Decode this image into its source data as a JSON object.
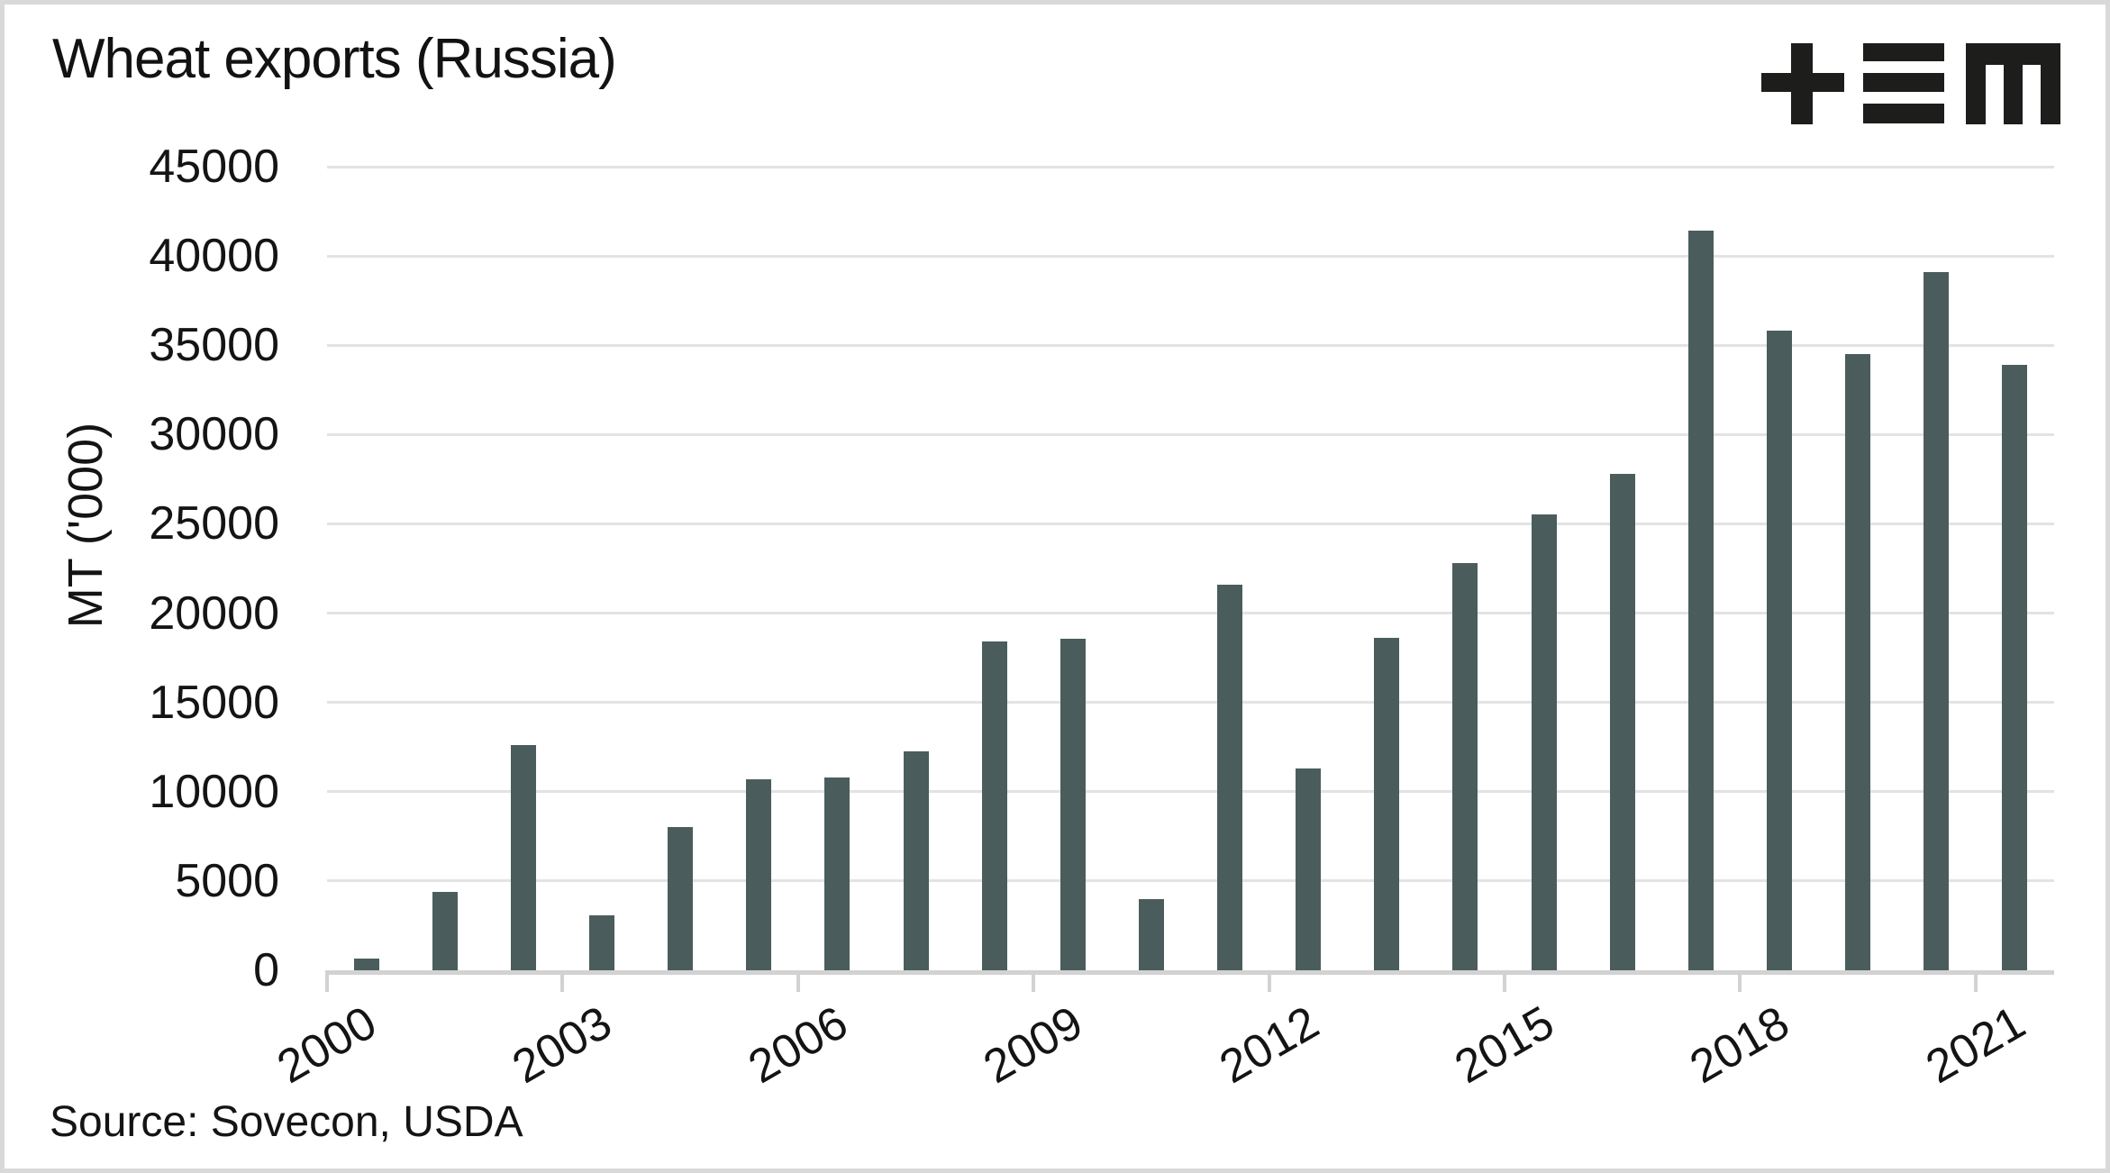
{
  "title": "Wheat exports (Russia)",
  "source_note": "Source: Sovecon, USDA",
  "logo": {
    "name": "tem-logo",
    "color": "#1d1d1b"
  },
  "colors": {
    "bar": "#4a5d5c",
    "gridline": "#e3e3e3",
    "axis": "#d2d2d2",
    "text": "#141414",
    "frame_border": "#d9d9d9",
    "background": "#ffffff"
  },
  "chart_data": {
    "type": "bar",
    "title": "Wheat exports (Russia)",
    "xlabel": "",
    "ylabel": "MT ('000)",
    "categories": [
      2000,
      2001,
      2002,
      2003,
      2004,
      2005,
      2006,
      2007,
      2008,
      2009,
      2010,
      2011,
      2012,
      2013,
      2014,
      2015,
      2016,
      2017,
      2018,
      2019,
      2020,
      2021
    ],
    "values": [
      650,
      4400,
      12600,
      3100,
      8000,
      10700,
      10800,
      12250,
      18400,
      18550,
      4000,
      21600,
      11300,
      18600,
      22800,
      25550,
      27800,
      41400,
      35800,
      34500,
      39100,
      33900
    ],
    "ylim": [
      0,
      45000
    ],
    "yticks": [
      0,
      5000,
      10000,
      15000,
      20000,
      25000,
      30000,
      35000,
      40000,
      45000
    ],
    "xtick_labels": [
      "2000",
      "2003",
      "2006",
      "2009",
      "2012",
      "2015",
      "2018",
      "2021"
    ],
    "xtick_year_index": [
      0,
      3,
      6,
      9,
      12,
      15,
      18,
      21
    ],
    "x_tick_rotation_deg": -30,
    "grid": "horizontal",
    "legend": "none",
    "bar_color": "#4a5d5c"
  }
}
